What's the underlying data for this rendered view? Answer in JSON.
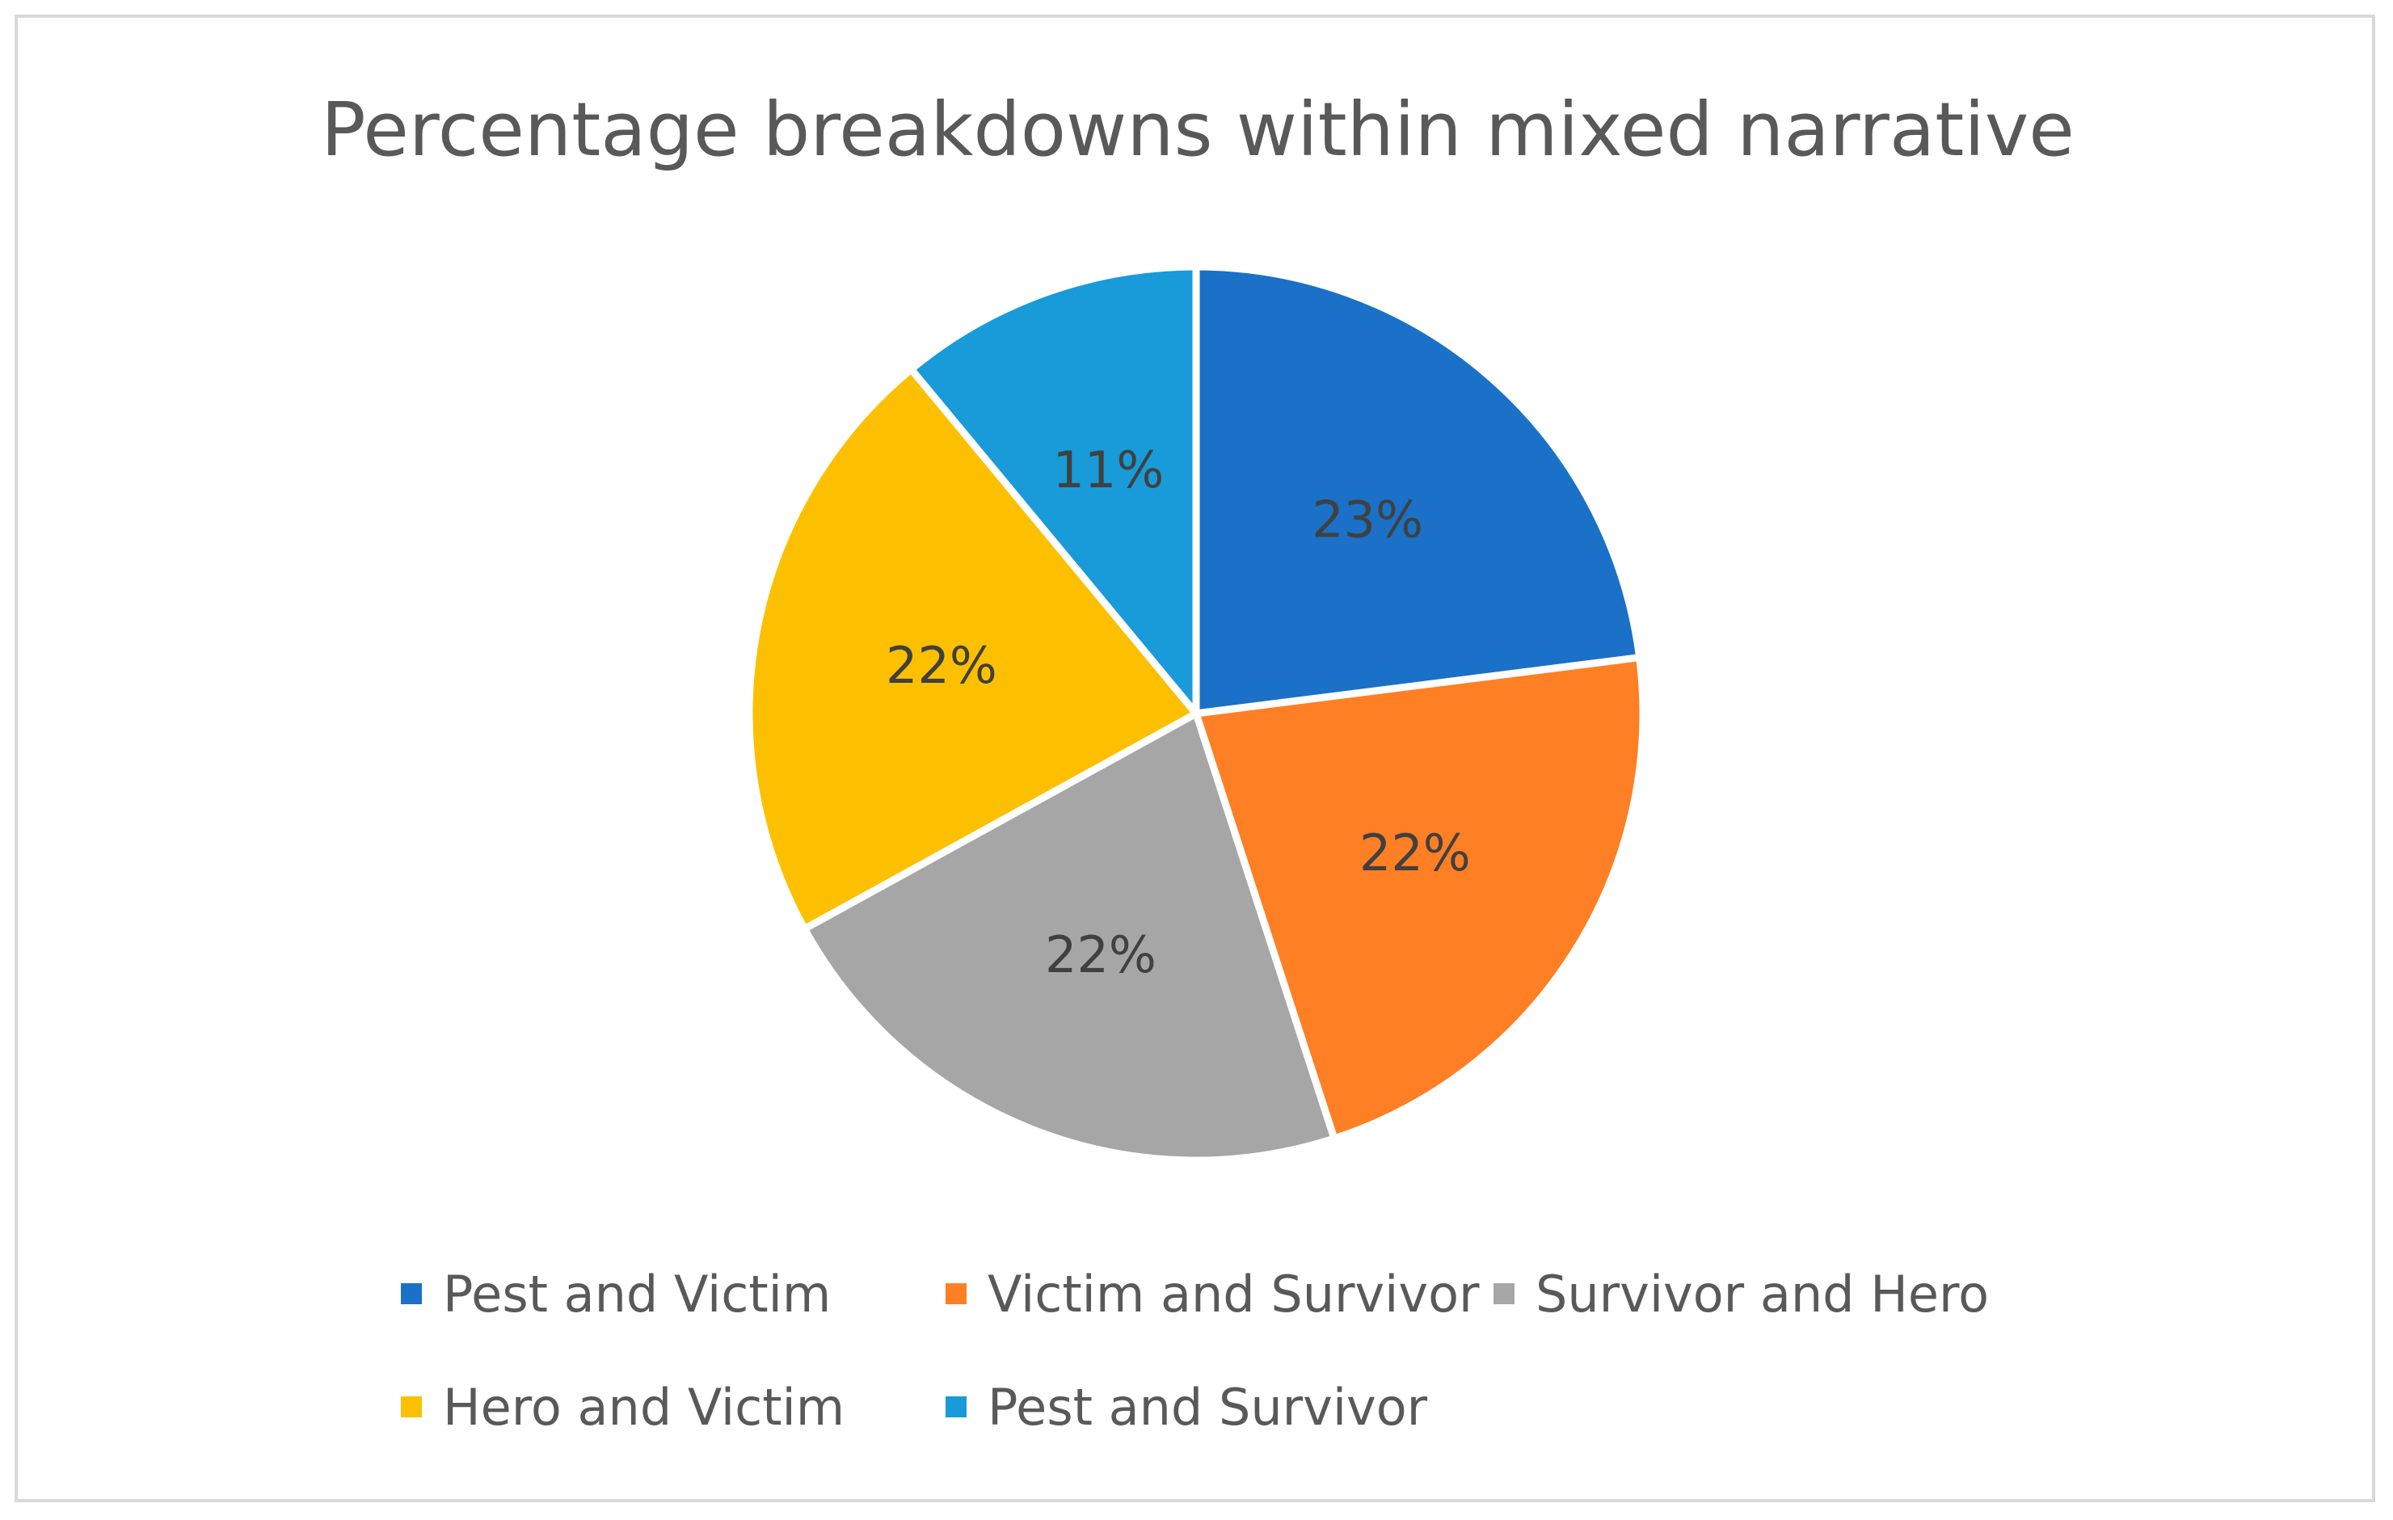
{
  "chart_data": {
    "type": "pie",
    "title": "Percentage breakdowns within mixed narrative",
    "categories": [
      "Pest and Victim",
      "Victim and Survivor",
      "Survivor and Hero",
      "Hero and Victim",
      "Pest and Survivor"
    ],
    "values": [
      23,
      22,
      22,
      22,
      11
    ],
    "data_labels": [
      "23%",
      "22%",
      "22%",
      "22%",
      "11%"
    ],
    "colors": [
      "#1a71c7",
      "#fe7f24",
      "#a6a6a6",
      "#fdc000",
      "#189bd8"
    ],
    "legend_position": "bottom",
    "start_angle": "12 o'clock",
    "direction": "clockwise"
  }
}
